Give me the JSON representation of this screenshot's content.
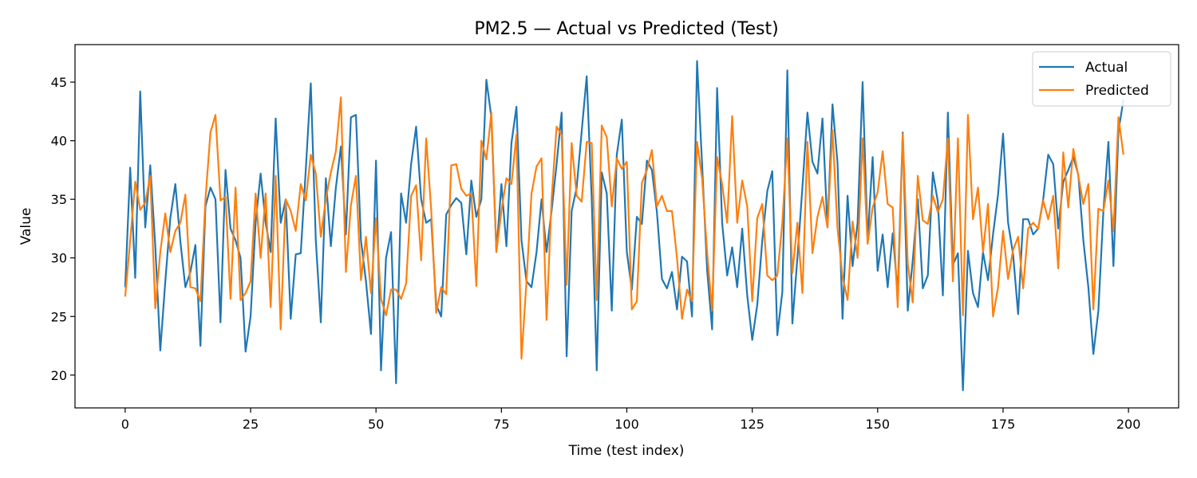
{
  "chart_data": {
    "type": "line",
    "title": "PM2.5 — Actual vs Predicted (Test)",
    "xlabel": "Time (test index)",
    "ylabel": "Value",
    "xlim": [
      -10,
      210
    ],
    "ylim": [
      17.2,
      48.2
    ],
    "xticks": [
      0,
      25,
      50,
      75,
      100,
      125,
      150,
      175,
      200
    ],
    "yticks": [
      20,
      25,
      30,
      35,
      40,
      45
    ],
    "grid": false,
    "legend_position": "top-right",
    "series": [
      {
        "name": "Actual",
        "color": "#1f77b4",
        "values": [
          27.5,
          37.7,
          28.3,
          44.2,
          32.6,
          37.9,
          31.0,
          22.1,
          28.0,
          33.4,
          36.3,
          31.4,
          27.5,
          28.8,
          31.1,
          22.5,
          34.4,
          36.0,
          35.0,
          24.5,
          37.5,
          32.5,
          31.5,
          30.0,
          22.0,
          25.0,
          33.0,
          37.2,
          33.0,
          30.5,
          41.9,
          33.0,
          35.0,
          24.8,
          30.3,
          30.4,
          37.5,
          44.9,
          31.5,
          24.5,
          36.8,
          31.0,
          36.0,
          39.5,
          32.0,
          42.0,
          42.2,
          31.5,
          28.0,
          23.5,
          38.3,
          20.4,
          30.0,
          32.2,
          19.3,
          35.5,
          33.0,
          38.0,
          41.2,
          35.0,
          33.0,
          33.3,
          26.0,
          25.0,
          33.7,
          34.5,
          35.1,
          34.7,
          30.3,
          36.6,
          33.5,
          35.0,
          45.2,
          42.0,
          30.5,
          36.3,
          31.0,
          39.8,
          42.9,
          31.5,
          28.0,
          27.5,
          30.5,
          35.0,
          30.5,
          34.0,
          38.0,
          42.4,
          21.6,
          34.0,
          36.0,
          40.8,
          45.5,
          35.0,
          20.4,
          37.3,
          35.5,
          25.5,
          38.8,
          41.8,
          30.5,
          27.3,
          33.5,
          32.9,
          38.3,
          37.5,
          33.9,
          28.2,
          27.4,
          28.8,
          25.6,
          30.1,
          29.7,
          25.0,
          46.8,
          38.0,
          29.0,
          23.9,
          44.5,
          33.0,
          28.5,
          30.9,
          27.5,
          32.5,
          26.8,
          23.0,
          26.0,
          31.5,
          35.7,
          37.4,
          23.4,
          27.1,
          46.0,
          24.4,
          30.0,
          36.0,
          42.4,
          38.2,
          37.2,
          41.9,
          32.6,
          43.1,
          38.1,
          24.8,
          35.3,
          29.3,
          33.0,
          45.0,
          31.5,
          38.6,
          28.9,
          32.0,
          27.5,
          32.1,
          27.0,
          40.7,
          25.5,
          29.8,
          35.0,
          27.4,
          28.5,
          37.3,
          34.8,
          26.8,
          42.4,
          29.4,
          30.4,
          18.7,
          30.6,
          27.0,
          25.8,
          30.5,
          28.1,
          32.0,
          35.4,
          40.6,
          33.0,
          30.3,
          25.2,
          33.3,
          33.3,
          32.0,
          32.5,
          35.0,
          38.8,
          38.0,
          32.5,
          36.5,
          37.5,
          38.6,
          37.1,
          31.5,
          27.5,
          21.8,
          25.5,
          34.0,
          39.9,
          29.3,
          40.8,
          43.5
        ]
      },
      {
        "name": "Predicted",
        "color": "#ff7f0e",
        "values": [
          26.7,
          31.5,
          36.5,
          34.1,
          34.7,
          37.0,
          25.7,
          30.5,
          33.8,
          30.5,
          32.3,
          33.0,
          35.4,
          27.5,
          27.4,
          26.3,
          35.0,
          40.7,
          42.2,
          34.9,
          35.2,
          26.5,
          36.0,
          26.4,
          27.0,
          28.0,
          35.5,
          30.0,
          35.5,
          25.8,
          37.0,
          23.9,
          35.0,
          34.0,
          32.3,
          36.3,
          34.9,
          38.8,
          37.2,
          31.8,
          35.0,
          37.3,
          39.1,
          43.7,
          28.8,
          34.5,
          37.0,
          28.1,
          31.8,
          27.0,
          33.4,
          26.5,
          25.1,
          27.3,
          27.3,
          26.5,
          27.8,
          35.3,
          36.2,
          29.8,
          40.2,
          34.1,
          25.3,
          27.5,
          26.9,
          37.9,
          38.0,
          35.9,
          35.3,
          35.5,
          27.6,
          40.0,
          38.4,
          42.4,
          30.5,
          34.0,
          36.8,
          36.3,
          40.5,
          21.4,
          28.0,
          35.5,
          37.8,
          38.5,
          24.7,
          35.0,
          41.2,
          40.5,
          27.7,
          39.8,
          35.3,
          34.8,
          39.9,
          39.8,
          26.4,
          41.3,
          40.3,
          34.4,
          38.5,
          37.6,
          38.2,
          25.6,
          26.3,
          36.4,
          37.5,
          39.2,
          34.4,
          35.3,
          34.0,
          34.0,
          30.0,
          24.8,
          27.3,
          26.3,
          39.9,
          36.8,
          30.5,
          25.5,
          38.6,
          36.3,
          33.0,
          42.1,
          33.0,
          36.6,
          34.4,
          26.3,
          33.4,
          34.6,
          28.5,
          28.1,
          28.5,
          33.0,
          40.2,
          28.7,
          33.0,
          27.0,
          39.9,
          30.4,
          33.5,
          35.2,
          32.6,
          40.9,
          32.5,
          28.4,
          26.4,
          33.1,
          30.0,
          40.2,
          31.2,
          34.3,
          35.6,
          39.1,
          34.6,
          34.3,
          25.8,
          40.6,
          29.5,
          26.2,
          37.0,
          33.2,
          32.9,
          35.3,
          33.9,
          35.0,
          40.2,
          28.0,
          40.2,
          25.1,
          42.2,
          33.3,
          36.0,
          30.5,
          34.6,
          25.0,
          27.5,
          32.3,
          28.2,
          30.7,
          31.8,
          27.4,
          32.5,
          33.0,
          32.5,
          34.9,
          33.3,
          35.3,
          29.1,
          39.0,
          34.3,
          39.3,
          37.0,
          34.6,
          36.3,
          25.6,
          34.2,
          34.0,
          36.6,
          32.3,
          42.0,
          38.8
        ]
      }
    ]
  }
}
